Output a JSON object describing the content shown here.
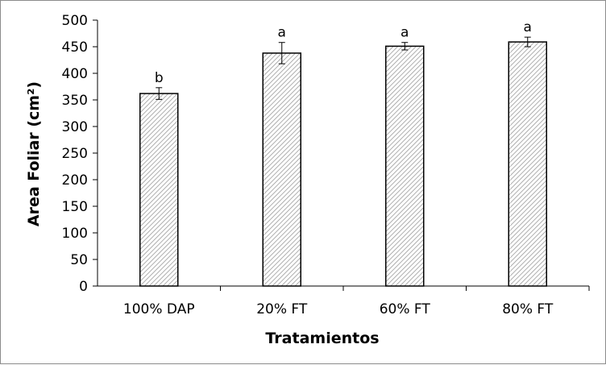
{
  "chart_data": {
    "type": "bar",
    "title": "",
    "xlabel": "Tratamientos",
    "ylabel": "Area Foliar (cm²)",
    "categories": [
      "100% DAP",
      "20% FT",
      "60% FT",
      "80% FT"
    ],
    "values": [
      362,
      438,
      451,
      459
    ],
    "errors": [
      11,
      20,
      7,
      9
    ],
    "significance_letters": [
      "b",
      "a",
      "a",
      "a"
    ],
    "ylim": [
      0,
      500
    ],
    "yticks": [
      0,
      50,
      100,
      150,
      200,
      250,
      300,
      350,
      400,
      450,
      500
    ],
    "grid": false,
    "bar_fill": "hatched",
    "colors": {
      "bar_stroke": "#000000",
      "hatch": "#9a9a9a",
      "axis": "#000000",
      "frame": "#8c8c8c"
    }
  }
}
